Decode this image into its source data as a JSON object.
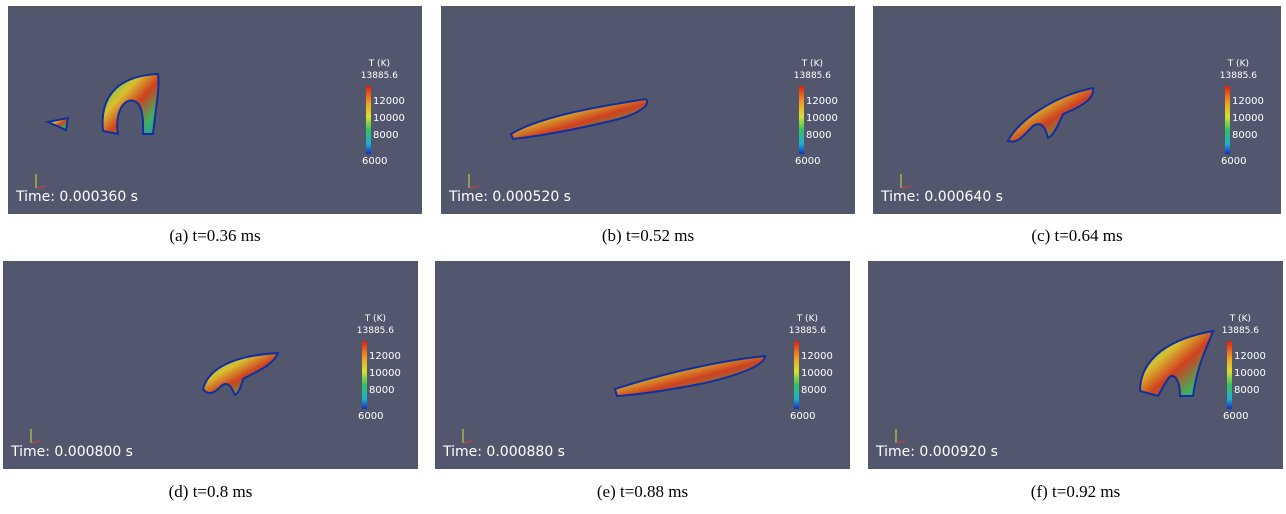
{
  "colorbar": {
    "title": "T (K)",
    "max_label": "13885.6",
    "ticks": [
      "12000",
      "10000",
      "8000"
    ],
    "min_label": "6000"
  },
  "panels": [
    {
      "time": "Time: 0.000360 s",
      "caption": "(a) t=0.36 ms"
    },
    {
      "time": "Time: 0.000520 s",
      "caption": "(b) t=0.52 ms"
    },
    {
      "time": "Time: 0.000640 s",
      "caption": "(c) t=0.64 ms"
    },
    {
      "time": "Time: 0.000800 s",
      "caption": "(d) t=0.8 ms"
    },
    {
      "time": "Time: 0.000880 s",
      "caption": "(e) t=0.88 ms"
    },
    {
      "time": "Time: 0.000920 s",
      "caption": "(f) t=0.92 ms"
    }
  ]
}
